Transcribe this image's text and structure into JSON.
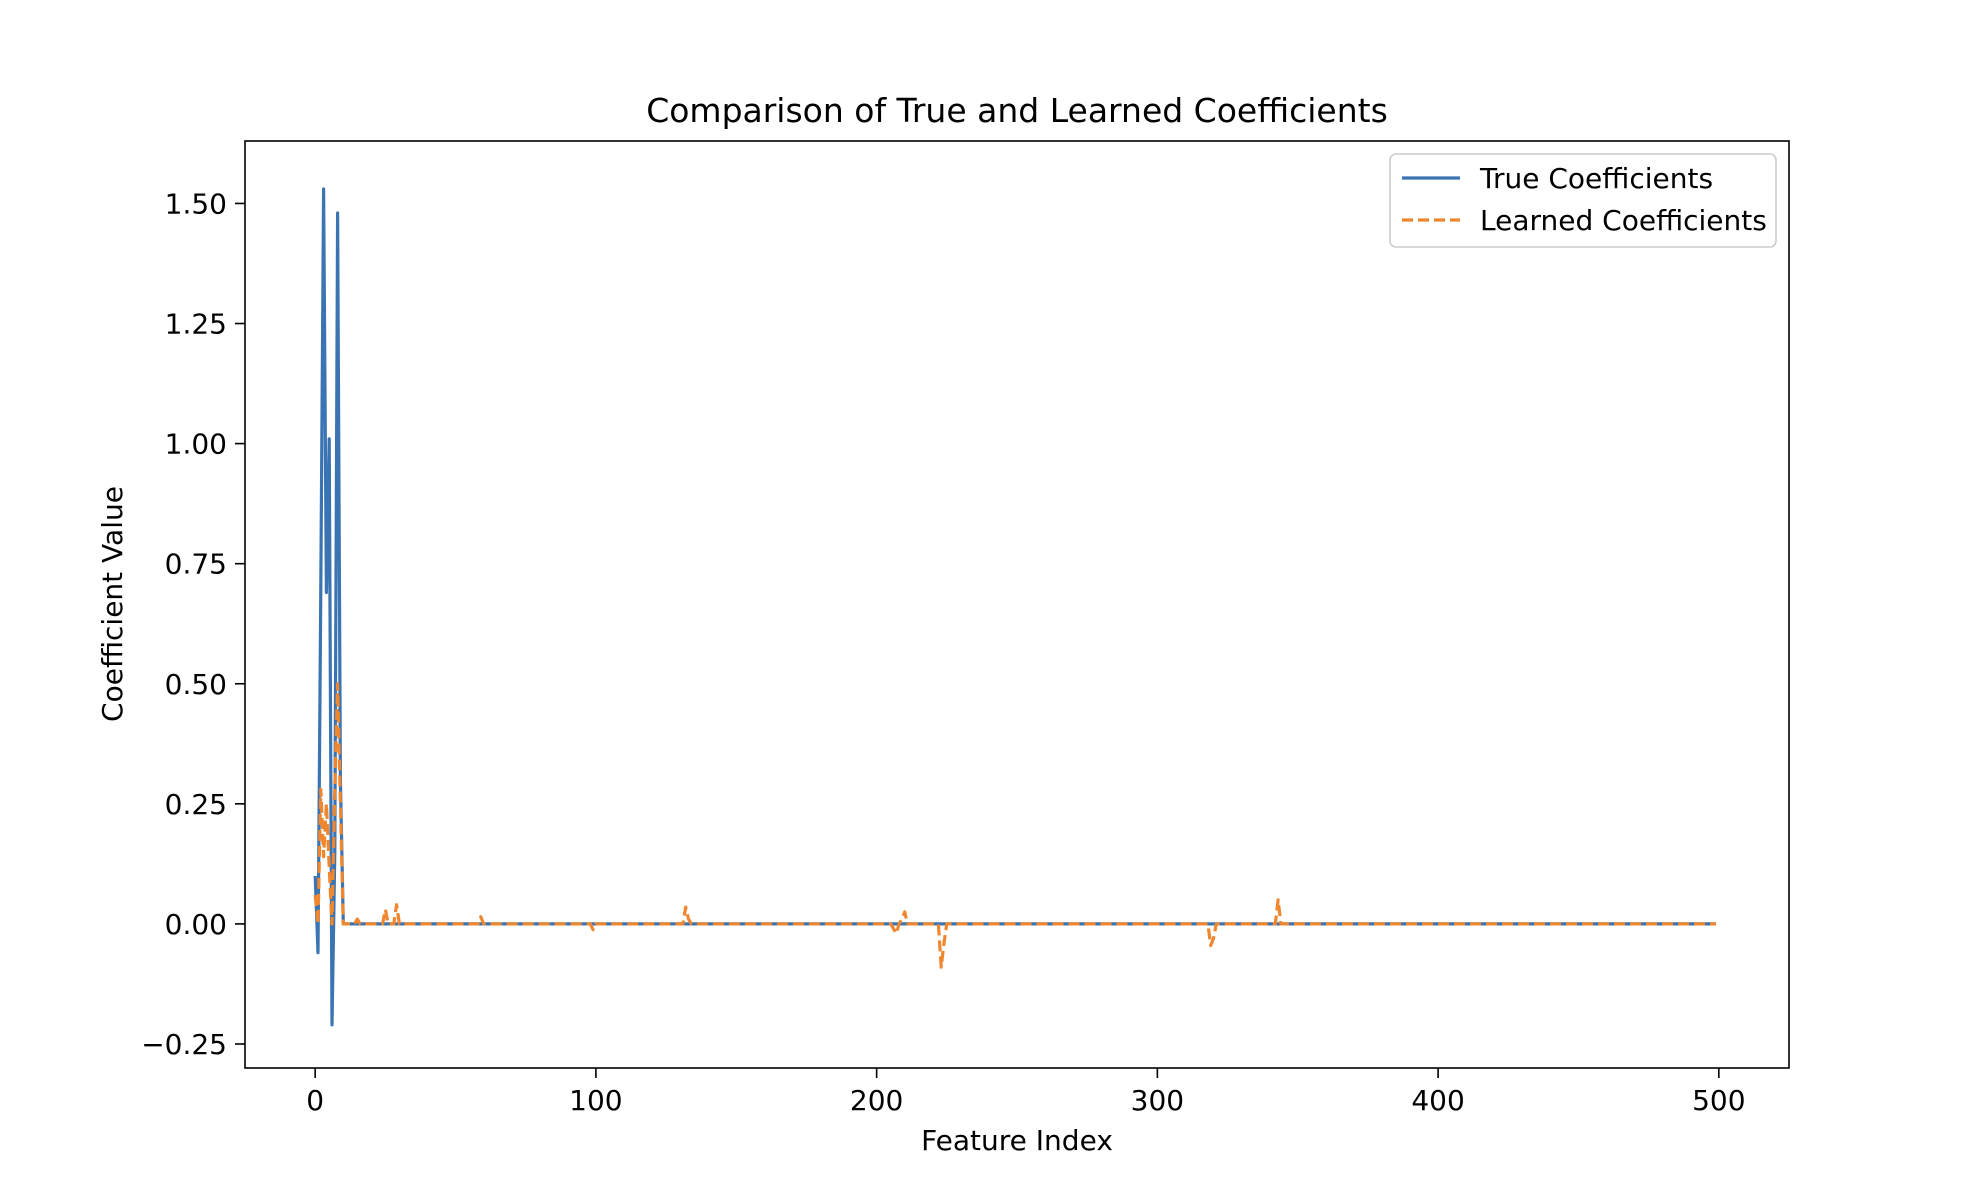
{
  "chart_data": {
    "type": "line",
    "title": "Comparison of True and Learned Coefficients",
    "xlabel": "Feature Index",
    "ylabel": "Coefficient Value",
    "xlim": [
      -25,
      525
    ],
    "ylim": [
      -0.3,
      1.63
    ],
    "xticks": [
      0,
      100,
      200,
      300,
      400,
      500
    ],
    "xtick_labels": [
      "0",
      "100",
      "200",
      "300",
      "400",
      "500"
    ],
    "yticks": [
      -0.25,
      0,
      0.25,
      0.5,
      0.75,
      1.0,
      1.25,
      1.5
    ],
    "ytick_labels": [
      "−0.25",
      "0.00",
      "0.25",
      "0.50",
      "0.75",
      "1.00",
      "1.25",
      "1.50"
    ],
    "grid": false,
    "legend_position": "top-right",
    "series": [
      {
        "name": "True Coefficients",
        "color": "#3a74b3",
        "style": "solid",
        "x": [
          0,
          1,
          2,
          3,
          4,
          5,
          6,
          7,
          8,
          9,
          10,
          499
        ],
        "y": [
          0.1,
          -0.06,
          0.7,
          1.53,
          0.69,
          1.01,
          -0.21,
          0.15,
          1.48,
          0.3,
          0.0,
          0.0
        ]
      },
      {
        "name": "Learned Coefficients",
        "color": "#f0872f",
        "style": "dashed",
        "x": [
          0,
          1,
          2,
          3,
          4,
          5,
          6,
          7,
          8,
          9,
          10,
          14,
          15,
          16,
          24,
          25,
          26,
          28,
          29,
          30,
          58,
          59,
          60,
          98,
          99,
          100,
          130,
          131,
          132,
          133,
          134,
          205,
          207,
          208,
          209,
          210,
          211,
          222,
          223,
          224,
          225,
          226,
          318,
          319,
          320,
          321,
          341,
          342,
          343,
          344,
          499
        ],
        "y": [
          0.06,
          0.0,
          0.28,
          0.14,
          0.25,
          0.12,
          0.0,
          0.28,
          0.5,
          0.25,
          0.0,
          0.0,
          0.01,
          0.0,
          0.0,
          0.03,
          0.0,
          0.0,
          0.04,
          0.0,
          0.0,
          0.015,
          0.0,
          0.0,
          -0.012,
          0.0,
          0.0,
          0.0,
          0.035,
          0.01,
          0.0,
          0.0,
          -0.02,
          0.0,
          0.01,
          0.025,
          0.0,
          0.0,
          -0.09,
          -0.04,
          0.0,
          0.0,
          0.0,
          -0.045,
          -0.03,
          0.0,
          0.0,
          0.0,
          0.05,
          0.0,
          0.0
        ]
      }
    ]
  }
}
